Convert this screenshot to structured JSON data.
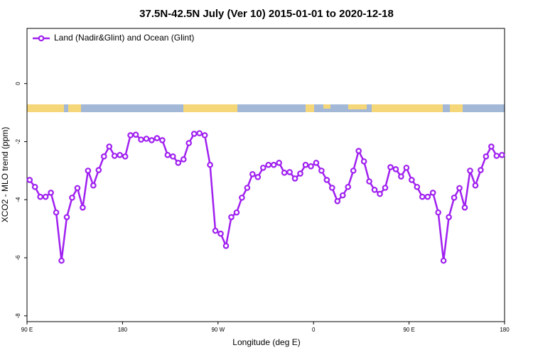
{
  "chart_data": {
    "type": "line",
    "title": "37.5N-42.5N July (Ver 10)   2015-01-01 to 2020-12-18",
    "x_label": "Longitude (deg E)",
    "y_label": "XCO2 - MLO trend (ppm)",
    "legend": "top-left",
    "xlim": [
      90,
      540
    ],
    "ylim": [
      -8.2,
      1.9
    ],
    "xticks": [
      {
        "value": 90,
        "label": "90 E"
      },
      180,
      {
        "value": 270,
        "label": "90 W"
      },
      {
        "value": 360,
        "label": "0"
      },
      {
        "value": 450,
        "label": "90 E"
      },
      {
        "value": 540,
        "label": "180"
      }
    ],
    "yticks": [
      0,
      -2,
      -4,
      -6,
      -8
    ],
    "x": [
      92.5,
      97.5,
      102.5,
      107.5,
      112.5,
      117.5,
      122.5,
      127.5,
      132.5,
      137.5,
      142.5,
      147.5,
      152.5,
      157.5,
      162.5,
      167.5,
      172.5,
      177.5,
      182.5,
      187.5,
      192.5,
      197.5,
      202.5,
      207.5,
      212.5,
      217.5,
      222.5,
      227.5,
      232.5,
      237.5,
      242.5,
      247.5,
      252.5,
      257.5,
      262.5,
      267.5,
      272.5,
      277.5,
      282.5,
      287.5,
      292.5,
      297.5,
      302.5,
      307.5,
      312.5,
      317.5,
      322.5,
      327.5,
      332.5,
      337.5,
      342.5,
      347.5,
      352.5,
      357.5,
      362.5,
      367.5,
      372.5,
      377.5,
      382.5,
      387.5,
      392.5,
      397.5,
      402.5,
      407.5,
      412.5,
      417.5,
      422.5,
      427.5,
      432.5,
      437.5,
      442.5,
      447.5,
      452.5,
      457.5,
      462.5,
      467.5,
      472.5,
      477.5,
      482.5,
      487.5,
      492.5,
      497.5,
      502.5,
      507.5,
      512.5,
      517.5,
      522.5,
      527.5,
      532.5,
      537.5
    ],
    "series": [
      {
        "name": "Land (Nadir&Glint) and Ocean (Glint)",
        "color": "#a020f0",
        "values": [
          -3.32,
          -3.56,
          -3.9,
          -3.9,
          -3.76,
          -4.44,
          -6.1,
          -4.6,
          -3.93,
          -3.6,
          -4.27,
          -3.0,
          -3.51,
          -2.98,
          -2.51,
          -2.17,
          -2.49,
          -2.46,
          -2.51,
          -1.78,
          -1.76,
          -1.93,
          -1.9,
          -1.95,
          -1.88,
          -1.95,
          -2.46,
          -2.51,
          -2.73,
          -2.61,
          -2.05,
          -1.73,
          -1.71,
          -1.78,
          -2.8,
          -5.07,
          -5.17,
          -5.59,
          -4.6,
          -4.44,
          -3.93,
          -3.59,
          -3.12,
          -3.22,
          -2.9,
          -2.8,
          -2.8,
          -2.73,
          -3.07,
          -3.05,
          -3.27,
          -3.1,
          -2.8,
          -2.85,
          -2.73,
          -3.0,
          -3.32,
          -3.59,
          -4.05,
          -3.85,
          -3.56,
          -3.0,
          -2.32,
          -2.68,
          -3.37,
          -3.66,
          -3.8,
          -3.59,
          -2.88,
          -2.95,
          -3.2,
          -2.9,
          -3.32,
          -3.56,
          -3.9,
          -3.9,
          -3.76,
          -4.44,
          -6.1,
          -4.6,
          -3.93,
          -3.6,
          -4.27,
          -3.0,
          -3.51,
          -2.98,
          -2.51,
          -2.17,
          -2.49,
          -2.46
        ]
      }
    ]
  }
}
